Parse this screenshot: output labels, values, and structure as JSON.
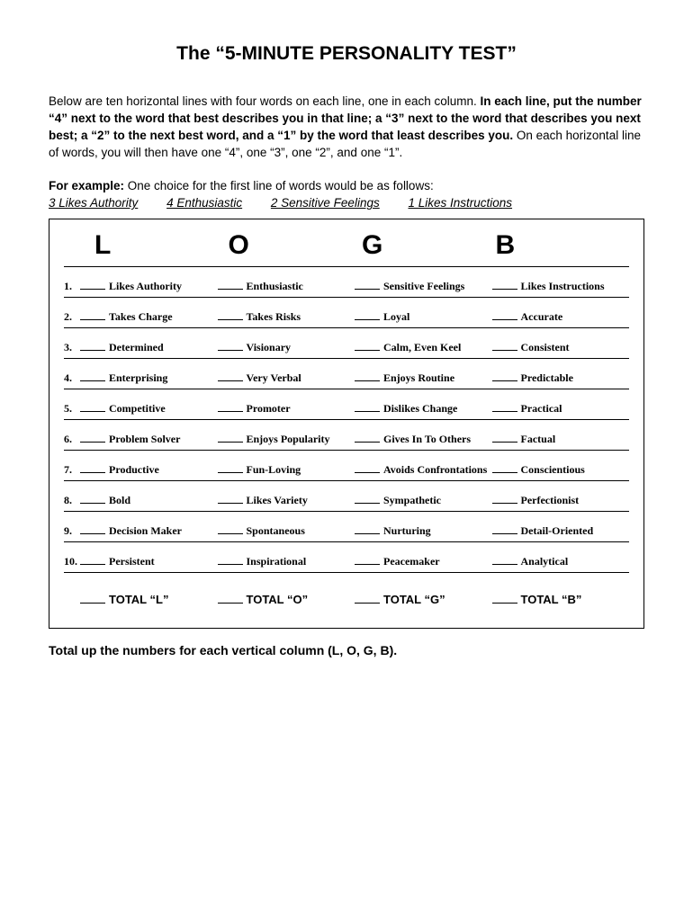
{
  "title": "The “5-MINUTE PERSONALITY TEST”",
  "instructions_html": "Below are ten horizontal lines with four words on each line, one in each column.  <b>In each line, put the number “4” next to the word that best describes you in that line; a “3” next to the word that describes you next best; a “2” to the next best word, and a “1” by the word that least describes you.</b>  On each horizontal line of words, you will then have one “4”, one “3”, one “2”, and one “1”.",
  "example_intro_html": "<b>For example:</b>  One choice for the first line of words would be as follows:",
  "example": {
    "a": "3 Likes Authority",
    "b": "4 Enthusiastic",
    "c": "2 Sensitive Feelings",
    "d": "1 Likes Instructions"
  },
  "headers": {
    "c1": "L",
    "c2": "O",
    "c3": "G",
    "c4": "B"
  },
  "rows": [
    {
      "n": "1.",
      "c1": "Likes Authority",
      "c2": "Enthusiastic",
      "c3": "Sensitive Feelings",
      "c4": "Likes Instructions"
    },
    {
      "n": "2.",
      "c1": "Takes Charge",
      "c2": "Takes Risks",
      "c3": "Loyal",
      "c4": "Accurate"
    },
    {
      "n": "3.",
      "c1": "Determined",
      "c2": "Visionary",
      "c3": "Calm, Even Keel",
      "c4": "Consistent"
    },
    {
      "n": "4.",
      "c1": "Enterprising",
      "c2": "Very Verbal",
      "c3": "Enjoys Routine",
      "c4": "Predictable"
    },
    {
      "n": "5.",
      "c1": "Competitive",
      "c2": "Promoter",
      "c3": "Dislikes Change",
      "c4": "Practical"
    },
    {
      "n": "6.",
      "c1": "Problem Solver",
      "c2": "Enjoys Popularity",
      "c3": "Gives In To Others",
      "c4": "Factual"
    },
    {
      "n": "7.",
      "c1": "Productive",
      "c2": "Fun-Loving",
      "c3": "Avoids Confrontations",
      "c4": "Conscientious"
    },
    {
      "n": "8.",
      "c1": "Bold",
      "c2": "Likes Variety",
      "c3": "Sympathetic",
      "c4": "Perfectionist"
    },
    {
      "n": "9.",
      "c1": "Decision Maker",
      "c2": "Spontaneous",
      "c3": "Nurturing",
      "c4": "Detail-Oriented"
    },
    {
      "n": "10.",
      "c1": "Persistent",
      "c2": "Inspirational",
      "c3": "Peacemaker",
      "c4": "Analytical"
    }
  ],
  "totals": {
    "c1": "TOTAL “L”",
    "c2": "TOTAL “O”",
    "c3": "TOTAL “G”",
    "c4": "TOTAL “B”"
  },
  "footer": "Total up the numbers for each vertical column (L, O, G, B)."
}
